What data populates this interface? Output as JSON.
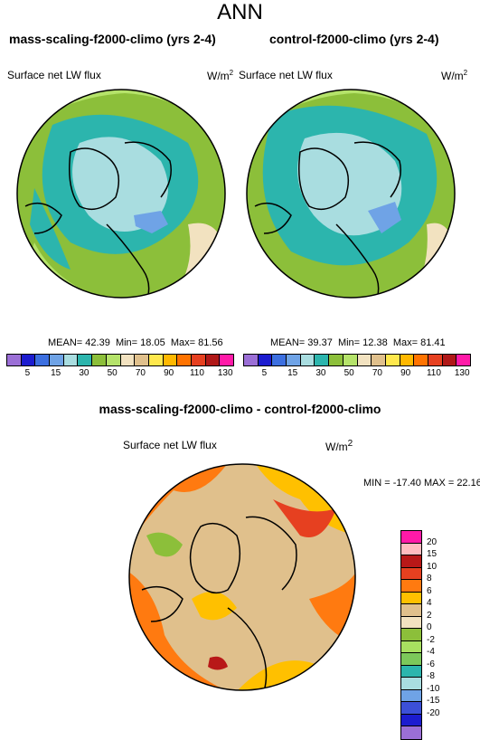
{
  "title": "ANN",
  "panels": [
    {
      "title": "mass-scaling-f2000-climo (yrs 2-4)",
      "variable": "Surface net LW flux",
      "units_base": "W/m",
      "units_exp": "2",
      "stats": {
        "mean_label": "MEAN=",
        "mean": "42.39",
        "min_label": "Min=",
        "min": "18.05",
        "max_label": "Max=",
        "max": "81.56"
      }
    },
    {
      "title": "control-f2000-climo (yrs 2-4)",
      "variable": "Surface net LW flux",
      "units_base": "W/m",
      "units_exp": "2",
      "stats": {
        "mean_label": "MEAN=",
        "mean": "39.37",
        "min_label": "Min=",
        "min": "12.38",
        "max_label": "Max=",
        "max": "81.41"
      }
    }
  ],
  "colorbar": {
    "ticks": [
      "5",
      "15",
      "30",
      "50",
      "70",
      "90",
      "110",
      "130"
    ],
    "colors": [
      "#9b6fd6",
      "#1c1ccf",
      "#3c6fe0",
      "#6fa3e6",
      "#a9dde0",
      "#2cb5ad",
      "#8cbf3a",
      "#b5e36a",
      "#f2e2c0",
      "#e0c08c",
      "#ffe84d",
      "#ffb800",
      "#ff7300",
      "#e64020",
      "#b01818",
      "#ff1aa8"
    ]
  },
  "difference": {
    "title": "mass-scaling-f2000-climo - control-f2000-climo",
    "variable": "Surface net LW flux",
    "units_base": "W/m",
    "units_exp": "2",
    "minmax": "MIN = -17.40  MAX =  22.16",
    "colorbar_ticks": [
      "20",
      "15",
      "10",
      "8",
      "6",
      "4",
      "2",
      "0",
      "-2",
      "-4",
      "-6",
      "-8",
      "-10",
      "-15",
      "-20"
    ],
    "colorbar_colors": [
      "#ff1aa8",
      "#ffbcc0",
      "#b81818",
      "#e64020",
      "#ff7a10",
      "#ffc000",
      "#e0c08c",
      "#f2e2c0",
      "#8cbf3a",
      "#a8e060",
      "#7cc85a",
      "#2cb5ad",
      "#a9dde0",
      "#6fa3e6",
      "#3c50d8",
      "#1c1ccf",
      "#9b6fd6"
    ]
  }
}
